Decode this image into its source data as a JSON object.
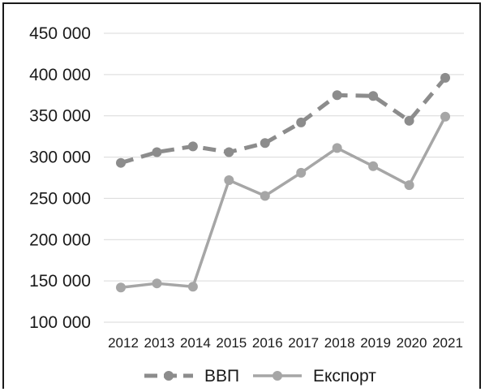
{
  "chart_data": {
    "type": "line",
    "categories": [
      "2012",
      "2013",
      "2014",
      "2015",
      "2016",
      "2017",
      "2018",
      "2019",
      "2020",
      "2021"
    ],
    "ylim": [
      100000,
      450000
    ],
    "yticks": [
      "450 000",
      "400 000",
      "350 000",
      "300 000",
      "250 000",
      "200 000",
      "150 000",
      "100 000"
    ],
    "grid": true,
    "legend_position": "bottom",
    "series": [
      {
        "name": "ВВП",
        "style": "dashed",
        "color": "#8c8c8c",
        "values": [
          293000,
          306000,
          313000,
          306000,
          317000,
          342000,
          375000,
          374000,
          344000,
          396000
        ]
      },
      {
        "name": "Експорт",
        "style": "solid",
        "color": "#a6a6a6",
        "values": [
          142000,
          147000,
          143000,
          272000,
          253000,
          281000,
          311000,
          289000,
          266000,
          349000
        ]
      }
    ]
  }
}
